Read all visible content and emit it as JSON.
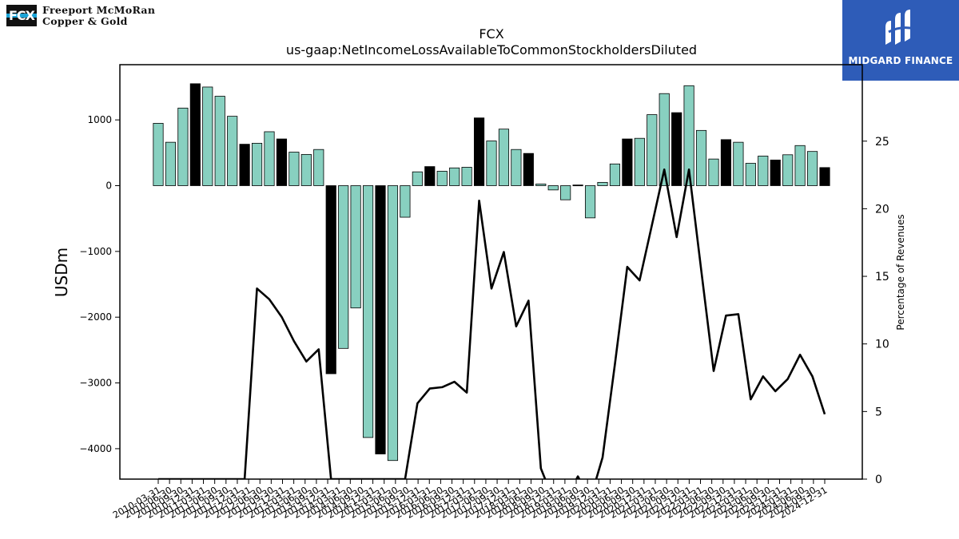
{
  "logos": {
    "left": {
      "mark_text": "FCX",
      "line1": "Freeport McMoRan",
      "line2": "Copper & Gold"
    },
    "right": {
      "name": "MIDGARD FINANCE"
    }
  },
  "chart_data": {
    "type": "bar",
    "title": "FCX",
    "subtitle": "us-gaap:NetIncomeLossAvailableToCommonStockholdersDiluted",
    "ylabel": "USDm",
    "y2label": "Percentage of Revenues",
    "ylim": [
      -4450,
      1800
    ],
    "y2lim": [
      0,
      30
    ],
    "yticks": [
      -4000,
      -3000,
      -2000,
      -1000,
      0,
      1000
    ],
    "y2ticks": [
      0,
      5,
      10,
      15,
      20,
      25
    ],
    "categories": [
      "2010-03-31",
      "2010-06-30",
      "2010-09-30",
      "2010-12-31",
      "2011-03-31",
      "2011-06-30",
      "2011-09-30",
      "2011-12-31",
      "2012-03-31",
      "2012-06-30",
      "2012-09-30",
      "2012-12-31",
      "2013-03-31",
      "2013-06-30",
      "2013-09-30",
      "2013-12-31",
      "2014-03-31",
      "2014-06-30",
      "2014-09-30",
      "2014-12-31",
      "2015-03-31",
      "2015-06-30",
      "2015-09-30",
      "2015-12-31",
      "2016-03-31",
      "2016-06-30",
      "2016-09-30",
      "2016-12-31",
      "2017-03-31",
      "2017-06-30",
      "2017-09-30",
      "2017-12-31",
      "2018-03-31",
      "2018-06-30",
      "2018-09-30",
      "2018-12-31",
      "2019-03-31",
      "2019-06-30",
      "2019-09-30",
      "2019-12-31",
      "2020-03-31",
      "2020-06-30",
      "2020-09-30",
      "2020-12-31",
      "2021-03-31",
      "2021-06-30",
      "2021-09-30",
      "2021-12-31",
      "2022-03-31",
      "2022-06-30",
      "2022-09-30",
      "2022-12-31",
      "2023-03-31",
      "2023-06-30",
      "2023-09-30",
      "2023-12-31",
      "2024-03-31",
      "2024-06-30",
      "2024-09-30",
      "2024-12-31"
    ],
    "xtick_labels": [
      "2010-03-31",
      "2010-06-30",
      "2010-09-30",
      "2010-12-31",
      "2011-03-31",
      "2011-06-30",
      "2011-09-30",
      "2011-12-31",
      "2012-03-31",
      "2012-06-30",
      "2012-09-30",
      "2012-12-31",
      "2013-03-31",
      "2013-06-30",
      "2013-09-30",
      "2013-12-31",
      "2014-03-31",
      "2014-06-30",
      "2014-09-30",
      "2014-12-31",
      "2015-03-31",
      "2015-06-30",
      "2015-09-30",
      "2015-12-31",
      "2016-03-31",
      "2016-06-30",
      "2016-09-30",
      "2016-12-31",
      "2017-03-31",
      "2017-06-30",
      "2017-09-30",
      "2017-12-31",
      "2018-03-31",
      "2018-06-30",
      "2018-09-30",
      "2018-12-31",
      "2019-03-31",
      "2019-06-30",
      "2019-09-30",
      "2019-12-31",
      "2020-03-31",
      "2020-06-30",
      "2020-09-30",
      "2020-12-31",
      "2021-03-31",
      "2021-06-30",
      "2021-09-30",
      "2021-12-31",
      "2022-03-31",
      "2022-06-30",
      "2022-09-30",
      "2022-12-31",
      "2023-03-31",
      "2023-06-30",
      "2023-09-30",
      "2023-12-31",
      "2024-03-31",
      "2024-06-30",
      "2024-09-30",
      "2024-12-31"
    ],
    "bar_values": [
      948,
      660,
      1180,
      1550,
      1500,
      1360,
      1055,
      630,
      645,
      820,
      710,
      510,
      475,
      550,
      -2860,
      -2475,
      -1860,
      -3830,
      -4080,
      -4180,
      -480,
      210,
      290,
      220,
      270,
      280,
      1030,
      680,
      860,
      550,
      490,
      25,
      -65,
      -215,
      10,
      -490,
      50,
      330,
      710,
      720,
      1080,
      1400,
      1110,
      1520,
      840,
      405,
      700,
      660,
      340,
      450,
      390,
      470,
      610,
      520,
      275
    ],
    "bar_colors": [
      "teal",
      "teal",
      "teal",
      "black",
      "teal",
      "teal",
      "teal",
      "black",
      "teal",
      "teal",
      "black",
      "teal",
      "teal",
      "teal",
      "black",
      "teal",
      "teal",
      "teal",
      "black",
      "teal",
      "teal",
      "teal",
      "black",
      "teal",
      "teal",
      "teal",
      "black",
      "teal",
      "teal",
      "teal",
      "black",
      "teal",
      "teal",
      "teal",
      "black",
      "teal",
      "teal",
      "teal",
      "black",
      "teal",
      "teal",
      "teal",
      "black",
      "teal",
      "teal",
      "teal",
      "black",
      "teal",
      "teal",
      "teal",
      "black",
      "teal",
      "teal",
      "teal",
      "black"
    ],
    "line_name": "Percentage of Revenues",
    "line_values": [
      0,
      0,
      0,
      0,
      0,
      0,
      0,
      0,
      14.1,
      13.3,
      12.0,
      10.2,
      8.7,
      9.6,
      0,
      0,
      0,
      0,
      0,
      0,
      0,
      5.6,
      6.7,
      6.8,
      7.2,
      6.4,
      20.6,
      14.1,
      16.8,
      11.3,
      13.2,
      0.8,
      -1.5,
      -1.5,
      0.2,
      -1.5,
      1.6,
      8.5,
      15.7,
      14.7,
      18.8,
      22.9,
      17.9,
      22.9,
      15.4,
      8.0,
      12.1,
      12.2,
      5.9,
      7.6,
      6.5,
      7.4,
      9.2,
      7.6,
      4.8
    ],
    "colors": {
      "teal": "#88d0c0",
      "black": "#000000",
      "line": "#000000",
      "right_logo_bg": "#2e5cb8",
      "left_logo_stripe": "#1ba3d6"
    }
  }
}
